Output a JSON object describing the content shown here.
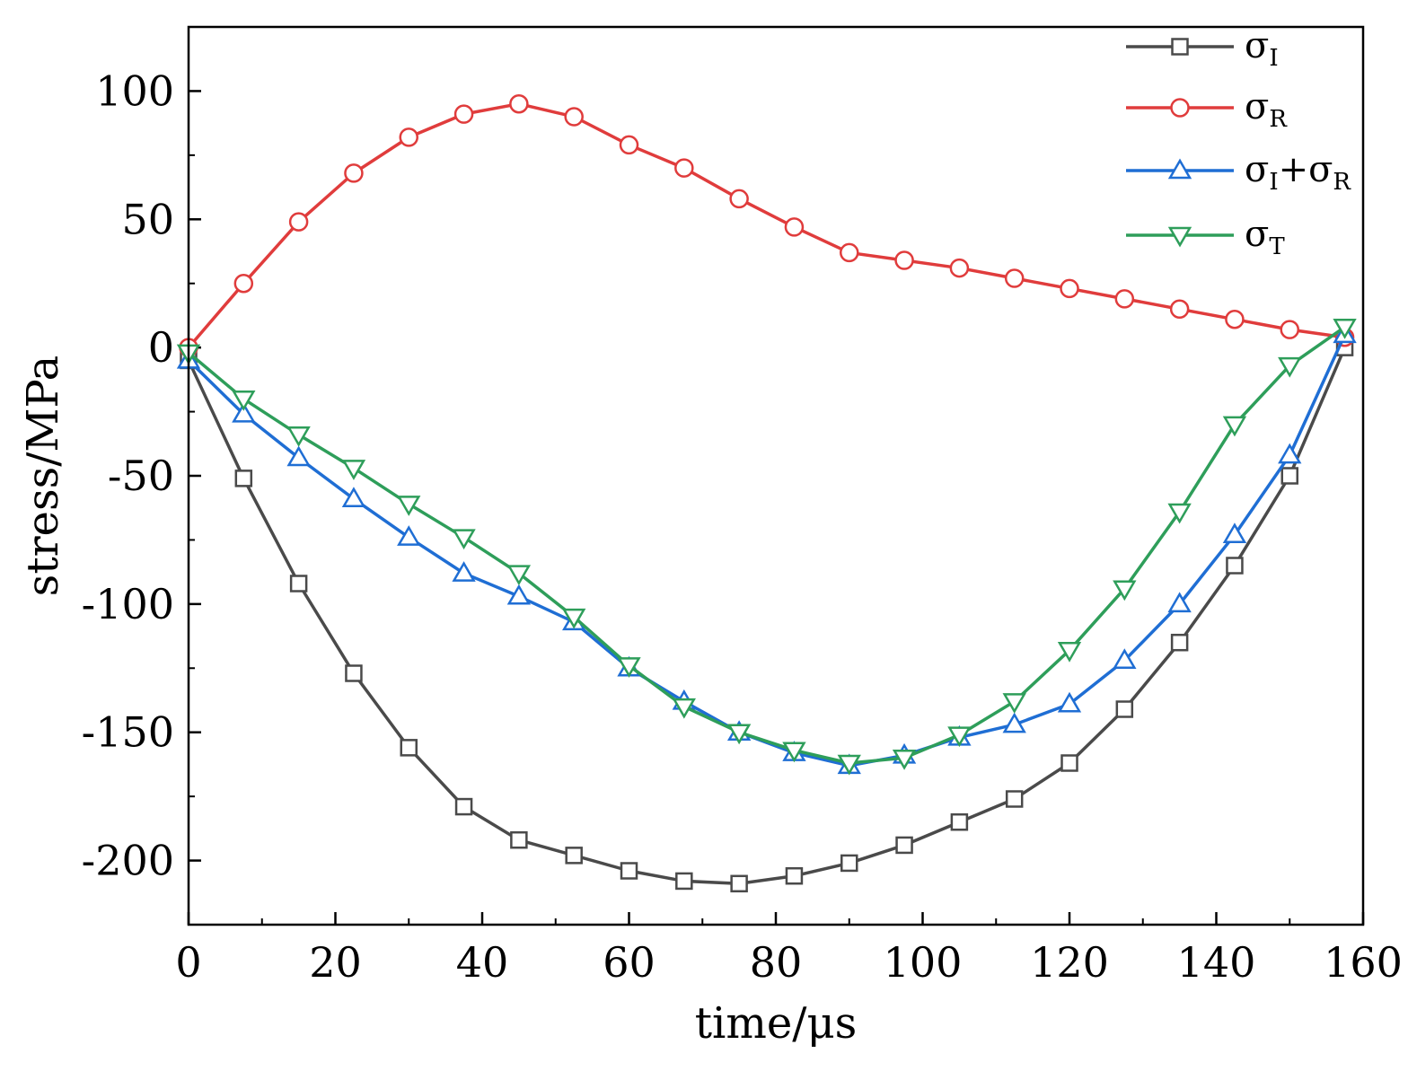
{
  "chart_data": {
    "type": "line",
    "title": "",
    "xlabel": "time/μs",
    "ylabel": "stress/MPa",
    "xlim": [
      0,
      160
    ],
    "ylim": [
      -225,
      125
    ],
    "xticks": [
      0,
      20,
      40,
      60,
      80,
      100,
      120,
      140,
      160
    ],
    "yticks": [
      100,
      50,
      0,
      -50,
      -100,
      -150,
      -200
    ],
    "xtick_labels": [
      "0",
      "20",
      "40",
      "60",
      "80",
      "100",
      "120",
      "140",
      "160"
    ],
    "ytick_labels": [
      "100",
      "50",
      "0",
      "-50",
      "-100",
      "-150",
      "-200"
    ],
    "legend_position": "top-right",
    "x": [
      0,
      7.5,
      15,
      22.5,
      30,
      37.5,
      45,
      52.5,
      60,
      67.5,
      75,
      82.5,
      90,
      97.5,
      105,
      112.5,
      120,
      127.5,
      135,
      142.5,
      150,
      157.5
    ],
    "series": [
      {
        "name": "σI",
        "sym": "σ",
        "sub": "I",
        "color": "#4a4a4a",
        "marker": "square",
        "values": [
          -5,
          -51,
          -92,
          -127,
          -156,
          -179,
          -192,
          -198,
          -204,
          -208,
          -209,
          -206,
          -201,
          -194,
          -185,
          -176,
          -162,
          -141,
          -115,
          -85,
          -50,
          0
        ]
      },
      {
        "name": "σR",
        "sym": "σ",
        "sub": "R",
        "color": "#e03c3c",
        "marker": "circle",
        "values": [
          0,
          25,
          49,
          68,
          82,
          91,
          95,
          90,
          79,
          70,
          58,
          47,
          37,
          34,
          31,
          27,
          23,
          19,
          15,
          11,
          7,
          4
        ]
      },
      {
        "name": "σI+σR",
        "sym": "σ",
        "sub": "I",
        "sym2": "+σ",
        "sub2": "R",
        "color": "#1f6ed4",
        "marker": "triangle-up",
        "values": [
          -5,
          -26,
          -43,
          -59,
          -74,
          -88,
          -97,
          -107,
          -125,
          -138,
          -150,
          -158,
          -163,
          -159,
          -152,
          -147,
          -139,
          -122,
          -100,
          -73,
          -42,
          5
        ]
      },
      {
        "name": "σT",
        "sym": "σ",
        "sub": "T",
        "color": "#2e9e5a",
        "marker": "triangle-down",
        "values": [
          -2,
          -20,
          -34,
          -47,
          -61,
          -74,
          -88,
          -105,
          -124,
          -140,
          -150,
          -157,
          -162,
          -160,
          -151,
          -138,
          -118,
          -94,
          -64,
          -30,
          -7,
          8
        ]
      }
    ]
  }
}
